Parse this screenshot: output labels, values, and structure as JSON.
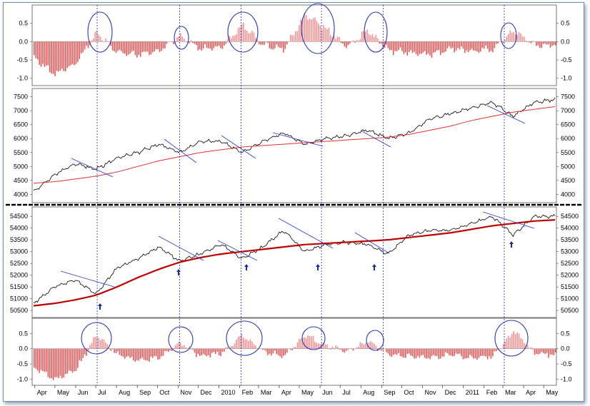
{
  "chart_data": [
    {
      "type": "bar",
      "panel": "top-oscillator",
      "title": "",
      "ylim": [
        -1.2,
        1.0
      ],
      "yticks": [
        "0.5",
        "0.0",
        "-0.5",
        "-1.0"
      ],
      "colors": {
        "positive": "#f08080",
        "negative": "#e03a3a"
      },
      "x": [
        "2009-04",
        "2009-05",
        "2009-06",
        "2009-07",
        "2009-08",
        "2009-09",
        "2009-10",
        "2009-11",
        "2009-12",
        "2010-01",
        "2010-02",
        "2010-03",
        "2010-04",
        "2010-05",
        "2010-06",
        "2010-07",
        "2010-08",
        "2010-09",
        "2010-10",
        "2010-11",
        "2010-12",
        "2011-01",
        "2011-02",
        "2011-03",
        "2011-04",
        "2011-05"
      ],
      "values": [
        -0.45,
        -0.9,
        -0.6,
        0.25,
        -0.3,
        -0.35,
        -0.25,
        0.15,
        -0.2,
        -0.15,
        0.45,
        -0.1,
        -0.2,
        0.75,
        0.35,
        -0.15,
        0.3,
        -0.25,
        -0.3,
        -0.35,
        -0.2,
        -0.25,
        -0.2,
        0.3,
        -0.1,
        -0.1
      ],
      "annotations": [
        "circled peaks at Jul, Nov, Feb, May-Jun, Aug-Sep, Mar"
      ]
    },
    {
      "type": "line",
      "panel": "index-1",
      "title": "",
      "ylim": [
        3700,
        7800
      ],
      "yticks": [
        "7500",
        "7000",
        "6500",
        "6000",
        "5500",
        "5000",
        "4500",
        "4000"
      ],
      "x": [
        "2009-04",
        "2009-05",
        "2009-06",
        "2009-07",
        "2009-08",
        "2009-09",
        "2009-10",
        "2009-11",
        "2009-12",
        "2010-01",
        "2010-02",
        "2010-03",
        "2010-04",
        "2010-05",
        "2010-06",
        "2010-07",
        "2010-08",
        "2010-09",
        "2010-10",
        "2010-11",
        "2010-12",
        "2011-01",
        "2011-02",
        "2011-03",
        "2011-04",
        "2011-05"
      ],
      "series": [
        {
          "values": [
            4100,
            4700,
            5100,
            4900,
            5300,
            5500,
            5800,
            5500,
            5900,
            5900,
            5500,
            5900,
            6200,
            5800,
            6000,
            6100,
            6300,
            6000,
            6200,
            6700,
            6900,
            7100,
            7300,
            6800,
            7300,
            7400
          ],
          "color": "#000000"
        },
        {
          "values": [
            4400,
            4450,
            4550,
            4650,
            4800,
            5000,
            5200,
            5350,
            5500,
            5600,
            5700,
            5750,
            5800,
            5850,
            5900,
            5950,
            6000,
            6050,
            6150,
            6300,
            6450,
            6650,
            6800,
            6950,
            7050,
            7150
          ],
          "color": "#e03030"
        }
      ],
      "annotations": [
        "blue trendlines drawn on pullbacks"
      ]
    },
    {
      "type": "line",
      "panel": "index-2",
      "title": "",
      "ylim": [
        50200,
        54900
      ],
      "yticks": [
        "54500",
        "54000",
        "53500",
        "53000",
        "52500",
        "52000",
        "51500",
        "51000",
        "50500"
      ],
      "x": [
        "2009-04",
        "2009-05",
        "2009-06",
        "2009-07",
        "2009-08",
        "2009-09",
        "2009-10",
        "2009-11",
        "2009-12",
        "2010-01",
        "2010-02",
        "2010-03",
        "2010-04",
        "2010-05",
        "2010-06",
        "2010-07",
        "2010-08",
        "2010-09",
        "2010-10",
        "2010-11",
        "2010-12",
        "2011-01",
        "2011-02",
        "2011-03",
        "2011-04",
        "2011-05"
      ],
      "series": [
        {
          "values": [
            50800,
            51500,
            51800,
            51200,
            52300,
            52700,
            53200,
            52600,
            52900,
            53300,
            52700,
            53200,
            53900,
            53000,
            53300,
            53400,
            53300,
            52900,
            53700,
            53900,
            53900,
            54200,
            54500,
            53700,
            54500,
            54500
          ],
          "color": "#000000"
        },
        {
          "values": [
            50700,
            50800,
            50950,
            51150,
            51500,
            51900,
            52250,
            52550,
            52750,
            52900,
            53000,
            53100,
            53200,
            53300,
            53350,
            53400,
            53450,
            53500,
            53600,
            53700,
            53800,
            53950,
            54100,
            54200,
            54300,
            54350
          ],
          "color": "#c00000"
        }
      ],
      "annotations": [
        "blue up arrows at Jul, Nov, Feb, May, Aug, Mar lows",
        "blue trendlines drawn on pullbacks"
      ]
    },
    {
      "type": "bar",
      "panel": "bottom-oscillator",
      "title": "",
      "ylim": [
        -1.2,
        1.0
      ],
      "yticks": [
        "0.5",
        "0.0",
        "-0.5",
        "-1.0"
      ],
      "colors": {
        "positive": "#f08080",
        "negative": "#e03a3a"
      },
      "x": [
        "2009-04",
        "2009-05",
        "2009-06",
        "2009-07",
        "2009-08",
        "2009-09",
        "2009-10",
        "2009-11",
        "2009-12",
        "2010-01",
        "2010-02",
        "2010-03",
        "2010-04",
        "2010-05",
        "2010-06",
        "2010-07",
        "2010-08",
        "2010-09",
        "2010-10",
        "2010-11",
        "2010-12",
        "2011-01",
        "2011-02",
        "2011-03",
        "2011-04",
        "2011-05"
      ],
      "values": [
        -0.6,
        -1.0,
        -0.7,
        0.45,
        -0.2,
        -0.4,
        -0.3,
        0.2,
        -0.25,
        -0.15,
        0.45,
        -0.1,
        -0.25,
        0.45,
        0.1,
        -0.1,
        0.25,
        -0.2,
        -0.25,
        -0.3,
        -0.2,
        -0.3,
        -0.25,
        0.6,
        -0.15,
        -0.2
      ],
      "annotations": [
        "circled peaks at Jul, Nov, Feb, May-Jun, Aug-Sep, Mar"
      ]
    }
  ],
  "x_axis_labels": [
    "Apr",
    "May",
    "Jun",
    "Jul",
    "Aug",
    "Sep",
    "Oct",
    "Nov",
    "Dec",
    "2010",
    "Feb",
    "Mar",
    "Apr",
    "May",
    "Jun",
    "Jul",
    "Aug",
    "Sep",
    "Oct",
    "Nov",
    "Dec",
    "2011",
    "Feb",
    "Mar",
    "Apr",
    "May"
  ],
  "markers": {
    "vertical_line_color": "#2020c0",
    "circle_color": "#2838b8",
    "arrow_color": "#1a2aa0",
    "events": [
      "2009-07",
      "2009-11",
      "2010-02",
      "2010-05/06",
      "2010-08/09",
      "2011-03"
    ]
  }
}
